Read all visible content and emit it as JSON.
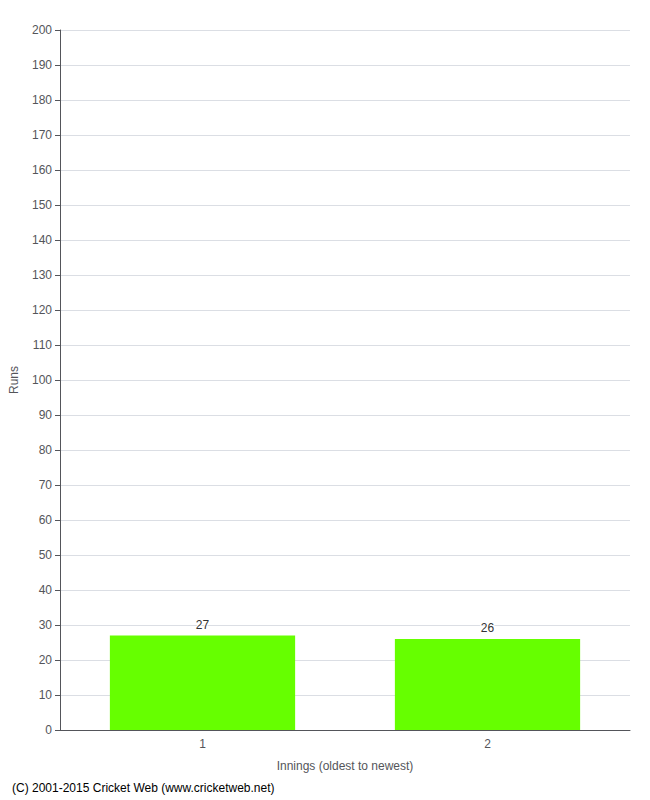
{
  "chart_data": {
    "type": "bar",
    "categories": [
      "1",
      "2"
    ],
    "values": [
      27,
      26
    ],
    "color": "#66ff00",
    "xlabel": "Innings (oldest to newest)",
    "ylabel": "Runs",
    "ylim": [
      0,
      200
    ],
    "yticks": [
      0,
      10,
      20,
      30,
      40,
      50,
      60,
      70,
      80,
      90,
      100,
      110,
      120,
      130,
      140,
      150,
      160,
      170,
      180,
      190,
      200
    ],
    "grid": true,
    "data_labels": true,
    "annotations": [
      "(C) 2001-2015 Cricket Web (www.cricketweb.net)"
    ]
  }
}
